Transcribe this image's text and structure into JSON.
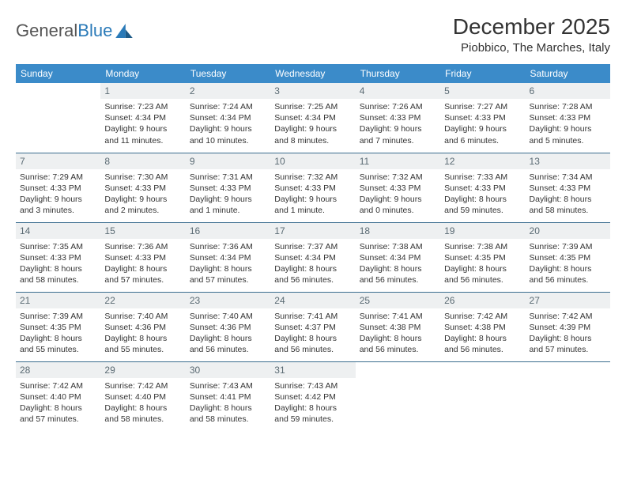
{
  "logo": {
    "general": "General",
    "blue": "Blue"
  },
  "title": "December 2025",
  "location": "Piobbico, The Marches, Italy",
  "colors": {
    "header_bg": "#3b8bc9",
    "header_text": "#ffffff",
    "daynum_bg": "#eef0f1",
    "daynum_text": "#5a6a73",
    "row_border": "#3b6d8f",
    "body_text": "#333333",
    "logo_gray": "#555555",
    "logo_blue": "#2a7ab8"
  },
  "weekdays": [
    "Sunday",
    "Monday",
    "Tuesday",
    "Wednesday",
    "Thursday",
    "Friday",
    "Saturday"
  ],
  "weeks": [
    [
      null,
      {
        "n": "1",
        "sr": "7:23 AM",
        "ss": "4:34 PM",
        "dl": "9 hours and 11 minutes."
      },
      {
        "n": "2",
        "sr": "7:24 AM",
        "ss": "4:34 PM",
        "dl": "9 hours and 10 minutes."
      },
      {
        "n": "3",
        "sr": "7:25 AM",
        "ss": "4:34 PM",
        "dl": "9 hours and 8 minutes."
      },
      {
        "n": "4",
        "sr": "7:26 AM",
        "ss": "4:33 PM",
        "dl": "9 hours and 7 minutes."
      },
      {
        "n": "5",
        "sr": "7:27 AM",
        "ss": "4:33 PM",
        "dl": "9 hours and 6 minutes."
      },
      {
        "n": "6",
        "sr": "7:28 AM",
        "ss": "4:33 PM",
        "dl": "9 hours and 5 minutes."
      }
    ],
    [
      {
        "n": "7",
        "sr": "7:29 AM",
        "ss": "4:33 PM",
        "dl": "9 hours and 3 minutes."
      },
      {
        "n": "8",
        "sr": "7:30 AM",
        "ss": "4:33 PM",
        "dl": "9 hours and 2 minutes."
      },
      {
        "n": "9",
        "sr": "7:31 AM",
        "ss": "4:33 PM",
        "dl": "9 hours and 1 minute."
      },
      {
        "n": "10",
        "sr": "7:32 AM",
        "ss": "4:33 PM",
        "dl": "9 hours and 1 minute."
      },
      {
        "n": "11",
        "sr": "7:32 AM",
        "ss": "4:33 PM",
        "dl": "9 hours and 0 minutes."
      },
      {
        "n": "12",
        "sr": "7:33 AM",
        "ss": "4:33 PM",
        "dl": "8 hours and 59 minutes."
      },
      {
        "n": "13",
        "sr": "7:34 AM",
        "ss": "4:33 PM",
        "dl": "8 hours and 58 minutes."
      }
    ],
    [
      {
        "n": "14",
        "sr": "7:35 AM",
        "ss": "4:33 PM",
        "dl": "8 hours and 58 minutes."
      },
      {
        "n": "15",
        "sr": "7:36 AM",
        "ss": "4:33 PM",
        "dl": "8 hours and 57 minutes."
      },
      {
        "n": "16",
        "sr": "7:36 AM",
        "ss": "4:34 PM",
        "dl": "8 hours and 57 minutes."
      },
      {
        "n": "17",
        "sr": "7:37 AM",
        "ss": "4:34 PM",
        "dl": "8 hours and 56 minutes."
      },
      {
        "n": "18",
        "sr": "7:38 AM",
        "ss": "4:34 PM",
        "dl": "8 hours and 56 minutes."
      },
      {
        "n": "19",
        "sr": "7:38 AM",
        "ss": "4:35 PM",
        "dl": "8 hours and 56 minutes."
      },
      {
        "n": "20",
        "sr": "7:39 AM",
        "ss": "4:35 PM",
        "dl": "8 hours and 56 minutes."
      }
    ],
    [
      {
        "n": "21",
        "sr": "7:39 AM",
        "ss": "4:35 PM",
        "dl": "8 hours and 55 minutes."
      },
      {
        "n": "22",
        "sr": "7:40 AM",
        "ss": "4:36 PM",
        "dl": "8 hours and 55 minutes."
      },
      {
        "n": "23",
        "sr": "7:40 AM",
        "ss": "4:36 PM",
        "dl": "8 hours and 56 minutes."
      },
      {
        "n": "24",
        "sr": "7:41 AM",
        "ss": "4:37 PM",
        "dl": "8 hours and 56 minutes."
      },
      {
        "n": "25",
        "sr": "7:41 AM",
        "ss": "4:38 PM",
        "dl": "8 hours and 56 minutes."
      },
      {
        "n": "26",
        "sr": "7:42 AM",
        "ss": "4:38 PM",
        "dl": "8 hours and 56 minutes."
      },
      {
        "n": "27",
        "sr": "7:42 AM",
        "ss": "4:39 PM",
        "dl": "8 hours and 57 minutes."
      }
    ],
    [
      {
        "n": "28",
        "sr": "7:42 AM",
        "ss": "4:40 PM",
        "dl": "8 hours and 57 minutes."
      },
      {
        "n": "29",
        "sr": "7:42 AM",
        "ss": "4:40 PM",
        "dl": "8 hours and 58 minutes."
      },
      {
        "n": "30",
        "sr": "7:43 AM",
        "ss": "4:41 PM",
        "dl": "8 hours and 58 minutes."
      },
      {
        "n": "31",
        "sr": "7:43 AM",
        "ss": "4:42 PM",
        "dl": "8 hours and 59 minutes."
      },
      null,
      null,
      null
    ]
  ],
  "labels": {
    "sunrise": "Sunrise:",
    "sunset": "Sunset:",
    "daylight": "Daylight:"
  }
}
